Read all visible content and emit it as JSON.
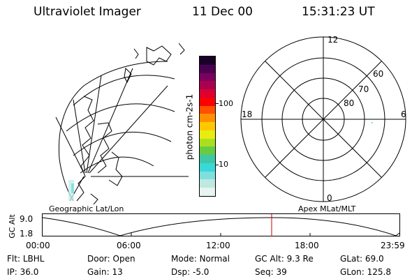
{
  "header": {
    "instrument": "Ultraviolet Imager",
    "date": "11 Dec 00",
    "time": "15:31:23 UT"
  },
  "map_panel": {
    "label": "Geographic Lat/Lon"
  },
  "colorbar": {
    "unit_label": "photon cm-2s-1",
    "ticks": [
      "100",
      "10"
    ],
    "colors": [
      "#e8f4f0",
      "#bfe8e0",
      "#7ee0dc",
      "#3ad8d8",
      "#3ec8a8",
      "#66cc44",
      "#a8e020",
      "#e8ec10",
      "#ffc800",
      "#ff9000",
      "#ff5000",
      "#ff0000",
      "#dd0030",
      "#aa0050",
      "#7a0060",
      "#4a0050",
      "#1a0028"
    ]
  },
  "polar_panel": {
    "label": "Apex MLat/MLT",
    "mlt_labels": {
      "top": "12",
      "left": "18",
      "right": "6",
      "bottom": "0"
    },
    "lat_labels": [
      "60",
      "70",
      "80"
    ]
  },
  "timeline": {
    "ylabel": "GC Alt",
    "y_ticks": [
      "9.0",
      "1.8"
    ],
    "x_ticks": [
      "00:00",
      "06:00",
      "12:00",
      "18:00",
      "23:59"
    ],
    "marker_color": "#cc0000"
  },
  "info": {
    "row1": [
      {
        "key": "Flt:",
        "value": "LBHL"
      },
      {
        "key": "Door:",
        "value": "Open"
      },
      {
        "key": "Mode:",
        "value": "Normal"
      },
      {
        "key": "GC Alt:",
        "value": "9.3 Re"
      },
      {
        "key": "GLat:",
        "value": "69.0"
      }
    ],
    "row2": [
      {
        "key": "IP:",
        "value": "36.0"
      },
      {
        "key": "Gain:",
        "value": "13"
      },
      {
        "key": "Dsp:",
        "value": "-5.0"
      },
      {
        "key": "Seq:",
        "value": "39"
      },
      {
        "key": "GLon:",
        "value": "125.8"
      }
    ]
  }
}
